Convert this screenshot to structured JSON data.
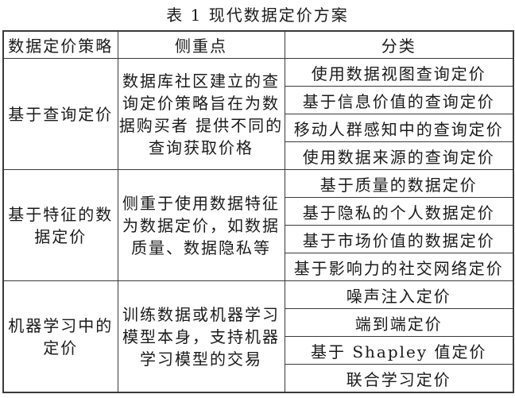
{
  "title": "表 1 现代数据定价方案",
  "table": {
    "headers": [
      "数据定价策略",
      "侧重点",
      "分类"
    ],
    "groups": [
      {
        "strategy": "基于查询定价",
        "focus": "数据库社区建立的查\n询定价策略旨在为数\n据购买者 提供不同的\n查询获取价格",
        "categories": [
          "使用数据视图查询定价",
          "基于信息价值的查询定价",
          "移动人群感知中的查询定价",
          "使用数据来源的查询定价"
        ]
      },
      {
        "strategy": "基于特征的数\n据定价",
        "focus": "侧重于使用数据特征\n为数据定价，如数据\n质量、数据隐私等",
        "categories": [
          "基于质量的数据定价",
          "基于隐私的个人数据定价",
          "基于市场价值的数据定价",
          "基于影响力的社交网络定价"
        ]
      },
      {
        "strategy": "机器学习中的\n定价",
        "focus": "训练数据或机器学习\n模型本身，支持机器\n学习模型的交易",
        "categories": [
          "噪声注入定价",
          "端到端定价",
          "基于 Shapley 值定价",
          "联合学习定价"
        ]
      }
    ]
  },
  "colors": {
    "text": "#1a1a1a",
    "border": "#3a3a3a",
    "background": "#ffffff"
  }
}
